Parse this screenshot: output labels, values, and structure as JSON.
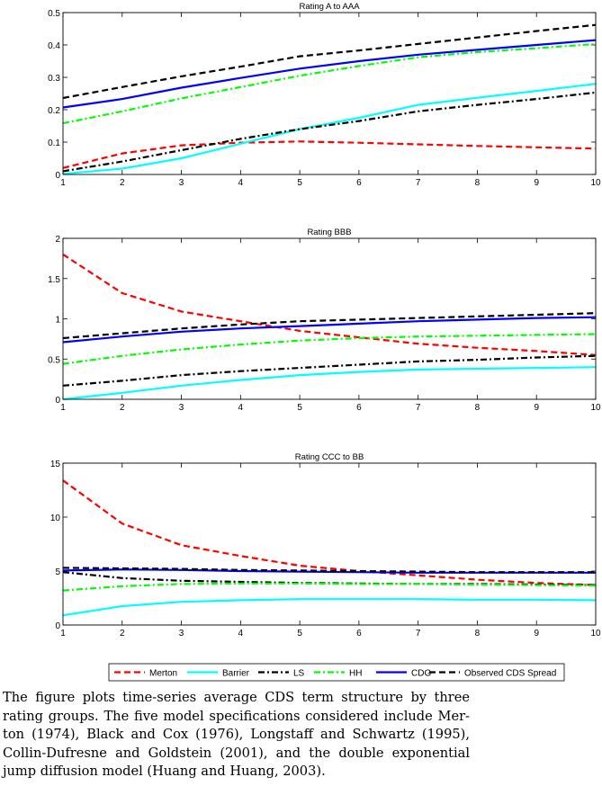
{
  "chart_data": [
    {
      "type": "line",
      "title": "Rating A to AAA",
      "x": [
        1,
        2,
        3,
        4,
        5,
        6,
        7,
        8,
        9,
        10
      ],
      "xlim": [
        1,
        10
      ],
      "ylim": [
        0,
        0.5
      ],
      "yticks": [
        0,
        0.1,
        0.2,
        0.3,
        0.4,
        0.5
      ],
      "grid": false,
      "series": [
        {
          "name": "Merton",
          "values": [
            0.02,
            0.065,
            0.09,
            0.098,
            0.102,
            0.098,
            0.093,
            0.088,
            0.084,
            0.08
          ]
        },
        {
          "name": "Barrier",
          "values": [
            0.002,
            0.018,
            0.05,
            0.095,
            0.14,
            0.175,
            0.215,
            0.237,
            0.258,
            0.28
          ]
        },
        {
          "name": "LS",
          "values": [
            0.01,
            0.04,
            0.075,
            0.11,
            0.14,
            0.165,
            0.195,
            0.215,
            0.233,
            0.253
          ]
        },
        {
          "name": "HH",
          "values": [
            0.158,
            0.195,
            0.235,
            0.27,
            0.305,
            0.335,
            0.362,
            0.378,
            0.39,
            0.403
          ]
        },
        {
          "name": "CDG",
          "values": [
            0.207,
            0.233,
            0.268,
            0.298,
            0.327,
            0.35,
            0.37,
            0.385,
            0.4,
            0.415
          ]
        },
        {
          "name": "Observed CDS Spread",
          "values": [
            0.236,
            0.27,
            0.303,
            0.333,
            0.365,
            0.383,
            0.403,
            0.423,
            0.443,
            0.462
          ]
        }
      ]
    },
    {
      "type": "line",
      "title": "Rating BBB",
      "x": [
        1,
        2,
        3,
        4,
        5,
        6,
        7,
        8,
        9,
        10
      ],
      "xlim": [
        1,
        10
      ],
      "ylim": [
        0,
        2
      ],
      "yticks": [
        0,
        0.5,
        1,
        1.5,
        2
      ],
      "grid": false,
      "series": [
        {
          "name": "Merton",
          "values": [
            1.8,
            1.32,
            1.09,
            0.97,
            0.85,
            0.77,
            0.69,
            0.64,
            0.6,
            0.55
          ]
        },
        {
          "name": "Barrier",
          "values": [
            0.0,
            0.08,
            0.17,
            0.24,
            0.3,
            0.34,
            0.37,
            0.38,
            0.39,
            0.4
          ]
        },
        {
          "name": "LS",
          "values": [
            0.17,
            0.23,
            0.3,
            0.35,
            0.39,
            0.43,
            0.47,
            0.49,
            0.52,
            0.54
          ]
        },
        {
          "name": "HH",
          "values": [
            0.44,
            0.54,
            0.62,
            0.68,
            0.73,
            0.76,
            0.78,
            0.79,
            0.8,
            0.81
          ]
        },
        {
          "name": "CDG",
          "values": [
            0.71,
            0.78,
            0.84,
            0.88,
            0.91,
            0.94,
            0.97,
            0.99,
            1.01,
            1.02
          ]
        },
        {
          "name": "Observed CDS Spread",
          "values": [
            0.76,
            0.82,
            0.88,
            0.93,
            0.97,
            0.99,
            1.01,
            1.03,
            1.05,
            1.07
          ]
        }
      ]
    },
    {
      "type": "line",
      "title": "Rating CCC to BB",
      "x": [
        1,
        2,
        3,
        4,
        5,
        6,
        7,
        8,
        9,
        10
      ],
      "xlim": [
        1,
        10
      ],
      "ylim": [
        0,
        15
      ],
      "yticks": [
        0,
        5,
        10,
        15
      ],
      "grid": false,
      "legend": "bottom",
      "series": [
        {
          "name": "Merton",
          "values": [
            13.4,
            9.4,
            7.4,
            6.4,
            5.5,
            5.0,
            4.6,
            4.2,
            3.9,
            3.7
          ]
        },
        {
          "name": "Barrier",
          "values": [
            0.9,
            1.75,
            2.15,
            2.3,
            2.4,
            2.4,
            2.4,
            2.35,
            2.35,
            2.3
          ]
        },
        {
          "name": "LS",
          "values": [
            4.9,
            4.35,
            4.1,
            4.0,
            3.9,
            3.85,
            3.8,
            3.8,
            3.75,
            3.7
          ]
        },
        {
          "name": "HH",
          "values": [
            3.2,
            3.6,
            3.8,
            3.85,
            3.85,
            3.8,
            3.8,
            3.75,
            3.7,
            3.65
          ]
        },
        {
          "name": "CDG",
          "values": [
            5.05,
            5.15,
            5.1,
            5.0,
            4.95,
            4.9,
            4.85,
            4.85,
            4.85,
            4.85
          ]
        },
        {
          "name": "Observed CDS Spread",
          "values": [
            5.3,
            5.25,
            5.2,
            5.1,
            5.05,
            5.0,
            4.95,
            4.9,
            4.9,
            4.9
          ]
        }
      ]
    }
  ],
  "legend": {
    "placement": "bottom",
    "entries": [
      {
        "label": "Merton",
        "color": "#ff0000",
        "style": "dashed"
      },
      {
        "label": "Barrier",
        "color": "#00ffff",
        "style": "solid"
      },
      {
        "label": "LS",
        "color": "#000000",
        "style": "dashdot"
      },
      {
        "label": "HH",
        "color": "#00ff00",
        "style": "dashdot"
      },
      {
        "label": "CDG",
        "color": "#0000ff",
        "style": "solid"
      },
      {
        "label": "Observed CDS Spread",
        "color": "#000000",
        "style": "dashed"
      }
    ]
  },
  "caption": {
    "lines": [
      "The figure plots time-series average CDS term structure by three",
      "rating groups. The five model specifications considered include Mer-",
      "ton (1974), Black and Cox (1976), Longstaff and Schwartz (1995),",
      "Collin-Dufresne and Goldstein (2001), and the double exponential",
      "jump diffusion model (Huang and Huang, 2003)."
    ]
  }
}
